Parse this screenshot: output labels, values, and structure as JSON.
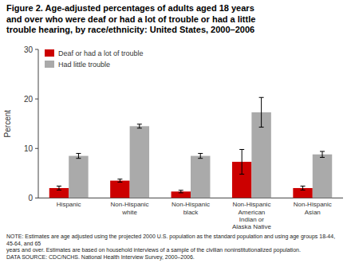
{
  "chart_data": {
    "type": "bar",
    "title": "Figure 2. Age-adjusted percentages of adults aged 18 years\nand over who were deaf or had a lot of trouble or had a little\ntrouble hearing, by race/ethnicity: United States, 2000–2006",
    "categories": [
      "Hispanic",
      "Non-Hispanic\nwhite",
      "Non-Hispanic\nblack",
      "Non-Hispanic\nAmerican\nIndian or\nAlaska Native",
      "Non-Hispanic\nAsian"
    ],
    "series": [
      {
        "name": "Deaf or had a lot of trouble",
        "color": "#cc0000",
        "values": [
          2.0,
          3.5,
          1.3,
          7.3,
          2.0
        ],
        "errors": [
          0.4,
          0.3,
          0.25,
          2.5,
          0.4
        ]
      },
      {
        "name": "Had little trouble",
        "color": "#aaaaaa",
        "values": [
          8.5,
          14.5,
          8.5,
          17.3,
          8.8
        ],
        "errors": [
          0.5,
          0.4,
          0.5,
          3.0,
          0.6
        ]
      }
    ],
    "ylabel": "Percent",
    "ylim": [
      0,
      30
    ],
    "yticks": [
      0,
      10,
      20,
      30
    ],
    "grid": false,
    "legend": "upper left",
    "annotations": [
      "NOTE: Estimates are age adjusted using the projected 2000 U.S. population as the standard population and using age groups 18-44, 45-64, and 65\nyears and over.  Estimates are based on household interviews of a sample of the civilian noninstitutionalized population.\nDATA SOURCE: CDC/NCHS. National Health Interview Survey, 2000–2006."
    ]
  }
}
